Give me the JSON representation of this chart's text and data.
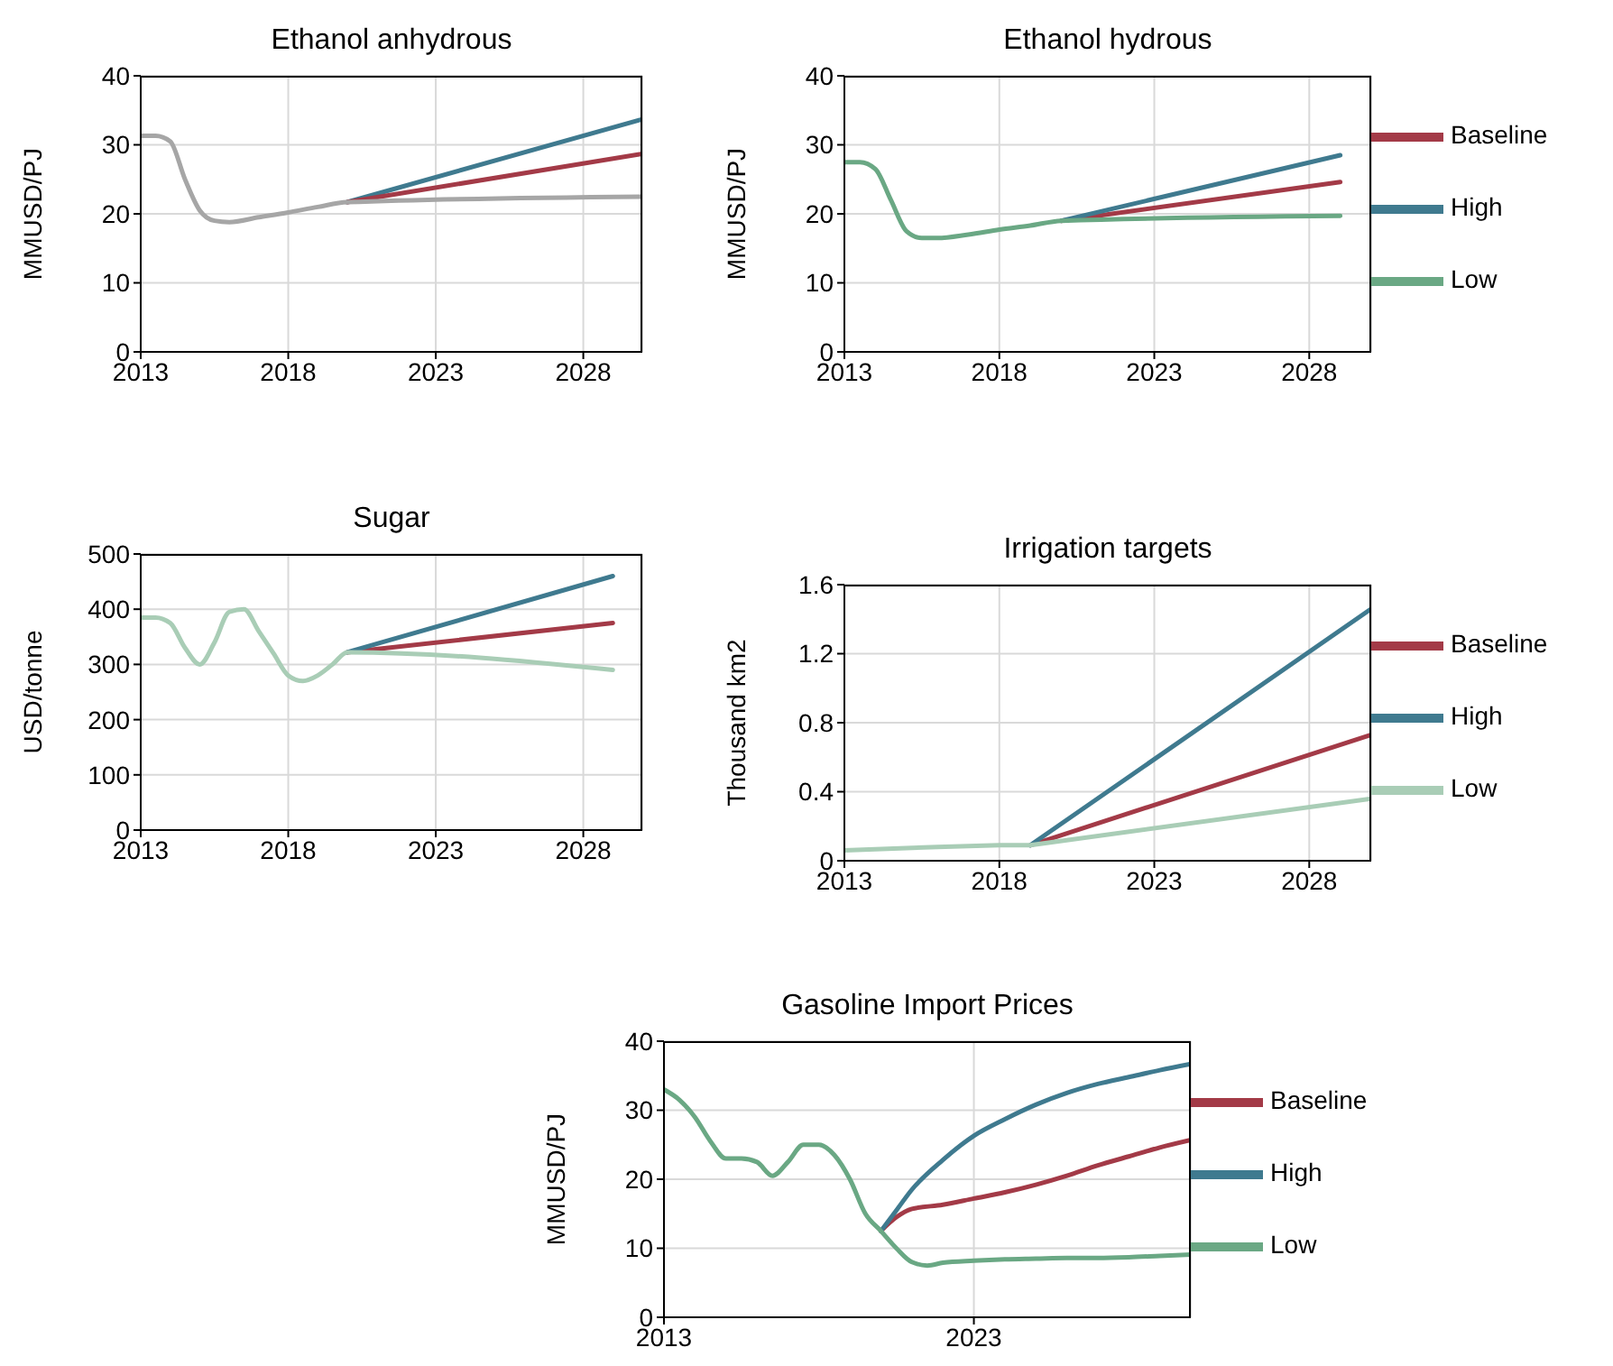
{
  "chart_data": [
    {
      "type": "line",
      "title": "Ethanol anhydrous",
      "ylabel": "MMUSD/PJ",
      "x": [
        2013,
        2013.5,
        2014,
        2014.5,
        2015,
        2015.5,
        2016,
        2017,
        2018,
        2019,
        2020,
        2030
      ],
      "xlim": [
        2013,
        2030
      ],
      "xticks": [
        2013,
        2018,
        2023,
        2028
      ],
      "ylim": [
        0,
        40
      ],
      "yticks": [
        0,
        10,
        20,
        30,
        40
      ],
      "grid": true,
      "legend": false,
      "series": [
        {
          "color": "#3f7a8f",
          "values": [
            null,
            null,
            null,
            null,
            null,
            null,
            null,
            null,
            null,
            null,
            21.7,
            33.7
          ]
        },
        {
          "color": "#a33a47",
          "values": [
            null,
            null,
            null,
            null,
            null,
            null,
            null,
            null,
            null,
            null,
            21.7,
            28.7
          ]
        },
        {
          "color": "#a6a6a6",
          "values": [
            31.3,
            31.3,
            30.5,
            25,
            20.5,
            19,
            18.8,
            19.5,
            20.2,
            21,
            21.7,
            22.5
          ]
        }
      ]
    },
    {
      "type": "line",
      "title": "Ethanol hydrous",
      "ylabel": "MMUSD/PJ",
      "x": [
        2013,
        2013.5,
        2014,
        2014.5,
        2015,
        2015.5,
        2016,
        2017,
        2018,
        2019,
        2020,
        2029
      ],
      "xlim": [
        2013,
        2030
      ],
      "xticks": [
        2013,
        2018,
        2023,
        2028
      ],
      "ylim": [
        0,
        40
      ],
      "yticks": [
        0,
        10,
        20,
        30,
        40
      ],
      "grid": true,
      "legend": "right",
      "series": [
        {
          "name": "Baseline",
          "color": "#a33a47",
          "values": [
            null,
            null,
            null,
            null,
            null,
            null,
            null,
            null,
            null,
            null,
            19,
            24.6
          ]
        },
        {
          "name": "High",
          "color": "#3f7a8f",
          "values": [
            null,
            null,
            null,
            null,
            null,
            null,
            null,
            null,
            null,
            null,
            19,
            28.5
          ]
        },
        {
          "name": "Low",
          "color": "#6aa884",
          "values": [
            27.5,
            27.5,
            26.5,
            22,
            17.5,
            16.5,
            16.5,
            17,
            17.7,
            18.3,
            19,
            19.7
          ]
        }
      ]
    },
    {
      "type": "line",
      "title": "Sugar",
      "ylabel": "USD/tonne",
      "x": [
        2013,
        2013.5,
        2014,
        2014.5,
        2015,
        2015.5,
        2016,
        2016.5,
        2017,
        2017.5,
        2018,
        2018.5,
        2019,
        2019.5,
        2020,
        2029
      ],
      "xlim": [
        2013,
        2030
      ],
      "xticks": [
        2013,
        2018,
        2023,
        2028
      ],
      "ylim": [
        0,
        500
      ],
      "yticks": [
        0,
        100,
        200,
        300,
        400,
        500
      ],
      "grid": true,
      "legend": false,
      "series": [
        {
          "color": "#a33a47",
          "values": [
            null,
            null,
            null,
            null,
            null,
            null,
            null,
            null,
            null,
            null,
            null,
            null,
            null,
            null,
            322,
            375
          ]
        },
        {
          "color": "#3f7a8f",
          "values": [
            null,
            null,
            null,
            null,
            null,
            null,
            null,
            null,
            null,
            null,
            null,
            null,
            null,
            null,
            322,
            460
          ]
        },
        {
          "color": "#a9cdb6",
          "values": [
            385,
            385,
            375,
            330,
            300,
            340,
            395,
            400,
            360,
            320,
            280,
            270,
            280,
            300,
            322,
            290
          ]
        }
      ]
    },
    {
      "type": "line",
      "title": "Irrigation targets",
      "ylabel": "Thousand km2",
      "x": [
        2013,
        2016,
        2018,
        2019,
        2030
      ],
      "xlim": [
        2013,
        2030
      ],
      "xticks": [
        2013,
        2018,
        2023,
        2028
      ],
      "ylim": [
        0,
        1.6
      ],
      "yticks": [
        0,
        0.4,
        0.8,
        1.2,
        1.6
      ],
      "grid": true,
      "legend": "right",
      "series": [
        {
          "name": "Baseline",
          "color": "#a33a47",
          "values": [
            null,
            null,
            null,
            0.09,
            0.73
          ]
        },
        {
          "name": "High",
          "color": "#3f7a8f",
          "values": [
            null,
            null,
            null,
            0.09,
            1.46
          ]
        },
        {
          "name": "Low",
          "color": "#a9cdb6",
          "values": [
            0.06,
            0.08,
            0.09,
            0.09,
            0.36
          ]
        }
      ]
    },
    {
      "type": "line",
      "title": "Gasoline Import Prices",
      "ylabel": "MMUSD/PJ",
      "xlim": [
        2013,
        2030
      ],
      "xticks": [
        2013,
        2023
      ],
      "ylim": [
        0,
        40
      ],
      "yticks": [
        0,
        10,
        20,
        30,
        40
      ],
      "grid": true,
      "legend": "right",
      "series": [
        {
          "name": "Baseline",
          "color": "#a33a47",
          "x": [
            2020,
            2020.5,
            2021,
            2022,
            2023,
            2024,
            2025,
            2026,
            2027,
            2028,
            2029,
            2030
          ],
          "values": [
            12.5,
            14.5,
            15.7,
            16.3,
            17.2,
            18.1,
            19.2,
            20.5,
            22,
            23.3,
            24.6,
            25.7
          ]
        },
        {
          "name": "High",
          "color": "#3f7a8f",
          "x": [
            2020,
            2020.5,
            2021,
            2022,
            2023,
            2024,
            2025,
            2026,
            2027,
            2028,
            2029,
            2030
          ],
          "values": [
            12.5,
            15.5,
            18.5,
            22.8,
            26.3,
            28.7,
            30.8,
            32.5,
            33.8,
            34.8,
            35.8,
            36.7
          ]
        },
        {
          "name": "Low",
          "color": "#6aa884",
          "x": [
            2013,
            2013.5,
            2014,
            2014.5,
            2015,
            2015.5,
            2016,
            2016.5,
            2017,
            2017.5,
            2018,
            2018.5,
            2019,
            2019.5,
            2020,
            2020.5,
            2021,
            2021.5,
            2022,
            2023,
            2024,
            2025,
            2026,
            2027,
            2028,
            2029,
            2030
          ],
          "values": [
            33,
            31.5,
            29,
            25.5,
            23,
            23,
            22.5,
            20.5,
            22.5,
            25,
            25,
            23.5,
            20,
            15,
            12.5,
            10,
            8,
            7.5,
            7.9,
            8.2,
            8.4,
            8.5,
            8.6,
            8.6,
            8.7,
            8.9,
            9.1
          ]
        }
      ]
    }
  ]
}
